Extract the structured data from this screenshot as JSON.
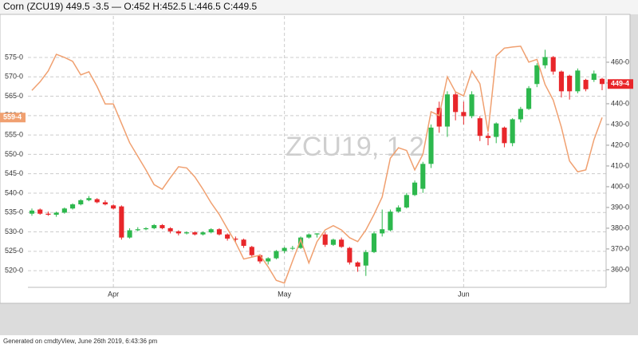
{
  "chart_data": {
    "type": "candlestick",
    "title": "Corn (ZCU19) 449.5 -3.5 — O:452 H:452.5 L:446.5 C:449.5",
    "watermark": "ZCU19, 1 2",
    "footer": "Generated on cmdtyView, June 26th 2019, 6:43:36 pm",
    "categories": [
      null,
      null,
      null,
      null,
      null,
      null,
      null,
      null,
      null,
      null,
      "Apr",
      null,
      null,
      null,
      null,
      null,
      null,
      null,
      null,
      null,
      null,
      null,
      null,
      null,
      null,
      null,
      null,
      null,
      null,
      null,
      null,
      "May",
      null,
      null,
      null,
      null,
      null,
      null,
      null,
      null,
      null,
      null,
      null,
      null,
      null,
      null,
      null,
      null,
      null,
      null,
      null,
      null,
      null,
      "Jun",
      null,
      null,
      null,
      null,
      null,
      null,
      null,
      null,
      null,
      null,
      null,
      null,
      null,
      null,
      null,
      null,
      null
    ],
    "grid": true,
    "ylim": [
      515.7,
      585.7
    ],
    "yticks": [
      {
        "value": 520,
        "label": "520-0"
      },
      {
        "value": 525,
        "label": "525-0"
      },
      {
        "value": 530,
        "label": "530-0"
      },
      {
        "value": 535,
        "label": "535-0"
      },
      {
        "value": 540,
        "label": "540-0"
      },
      {
        "value": 545,
        "label": "545-0"
      },
      {
        "value": 550,
        "label": "550-0"
      },
      {
        "value": 555,
        "label": "555-0"
      },
      {
        "value": 560,
        "label": "560-0"
      },
      {
        "value": 565,
        "label": "565-0"
      },
      {
        "value": 570,
        "label": "570-0"
      },
      {
        "value": 575,
        "label": "575-0"
      }
    ],
    "y2lim": [
      351.5,
      482.3
    ],
    "y2ticks": [
      {
        "value": 360,
        "label": "360-0"
      },
      {
        "value": 370,
        "label": "370-0"
      },
      {
        "value": 380,
        "label": "380-0"
      },
      {
        "value": 390,
        "label": "390-0"
      },
      {
        "value": 400,
        "label": "400-0"
      },
      {
        "value": 410,
        "label": "410-0"
      },
      {
        "value": 420,
        "label": "420-0"
      },
      {
        "value": 430,
        "label": "430-0"
      },
      {
        "value": 440,
        "label": "440-0"
      },
      {
        "value": 450,
        "label": "450-0"
      },
      {
        "value": 460,
        "label": "460-0"
      }
    ],
    "price_tags": [
      {
        "value": 559.5,
        "label": "559-4",
        "axis": "y",
        "color": "#f0a070"
      },
      {
        "value": 449.5,
        "label": "449-4",
        "axis": "y2",
        "color": "#e8262a"
      }
    ],
    "series": [
      {
        "type": "candlestick",
        "axis": "y2",
        "up_color": "#2db84d",
        "down_color": "#e8262a",
        "open": [
          387,
          389,
          387,
          386.5,
          387.5,
          389.5,
          391.5,
          393.5,
          394,
          392.5,
          391,
          390.5,
          375.5,
          379,
          379.5,
          380,
          381.5,
          380,
          378.5,
          377.5,
          378,
          377,
          378,
          379.5,
          377,
          375,
          374.5,
          371,
          367,
          364,
          365.5,
          369,
          370.5,
          370.5,
          375.5,
          377,
          377,
          372,
          374.5,
          370.5,
          363.5,
          362,
          368.5,
          377.5,
          379,
          388,
          390,
          396,
          399,
          411,
          438,
          429,
          444.5,
          436,
          434,
          433,
          424.5,
          424,
          428.5,
          421,
          432.5,
          437.5,
          449.5,
          458.5,
          462.5,
          455.5,
          453.5,
          446,
          451.5,
          451.5,
          452
        ],
        "high": [
          389.5,
          389.5,
          388,
          388,
          390,
          392,
          394,
          395.5,
          394.5,
          393.5,
          391.5,
          391,
          380,
          380.5,
          380.5,
          382,
          382,
          380.5,
          379,
          378.5,
          378.5,
          378.5,
          380,
          380,
          377.5,
          376,
          375,
          371.5,
          367.5,
          366,
          369.5,
          371,
          371.5,
          376,
          377.5,
          377.5,
          378,
          375,
          375.5,
          371,
          364,
          369.5,
          378.5,
          389,
          389,
          391,
          397,
          403,
          412,
          430,
          441,
          446,
          446,
          441,
          446,
          434,
          426,
          431,
          429,
          433,
          438.5,
          448.5,
          459.5,
          466,
          463,
          456,
          454,
          457,
          452,
          456,
          452.5
        ],
        "low": [
          386,
          386.5,
          386,
          385.5,
          387,
          389,
          391,
          393,
          392,
          391,
          389,
          374.5,
          375,
          378.5,
          379,
          379.5,
          379.5,
          377.5,
          376.5,
          377,
          376.5,
          376.5,
          377.5,
          376.5,
          374,
          373.5,
          370.5,
          366,
          363,
          362.5,
          365,
          368,
          369.5,
          370,
          375,
          375.5,
          371,
          371.5,
          370.5,
          362.5,
          359,
          357,
          368,
          376,
          378.5,
          387.5,
          389.5,
          395.5,
          397,
          409,
          426,
          424,
          432,
          430,
          433,
          422,
          420,
          421,
          419,
          419.5,
          431,
          437,
          448,
          457,
          454,
          443,
          442,
          445,
          446,
          450.5,
          446.5
        ],
        "close": [
          388.5,
          387,
          386.5,
          387.5,
          389.5,
          391.5,
          393.5,
          394.5,
          392.5,
          391.5,
          389.5,
          375.5,
          379,
          379.5,
          380,
          381.5,
          380,
          378.5,
          377.5,
          378,
          377,
          378,
          379.5,
          377,
          375,
          374.5,
          371.5,
          367,
          364,
          365.5,
          369,
          370.5,
          370.5,
          375.5,
          377,
          377.5,
          372,
          374.5,
          371,
          363.5,
          361.5,
          368.5,
          377.5,
          379.5,
          388,
          390,
          396,
          402,
          411,
          428.5,
          429,
          444.5,
          436,
          434,
          444.5,
          424.5,
          423.5,
          430.5,
          421,
          432.5,
          437.5,
          447.5,
          458.5,
          462.5,
          455.5,
          446,
          446,
          456,
          447,
          454.5,
          449.5
        ]
      },
      {
        "type": "line",
        "axis": "y",
        "color": "#f0a070",
        "values": [
          566.5,
          568.7,
          571.5,
          575.8,
          575,
          574,
          570.5,
          571.3,
          567.5,
          563,
          563,
          558,
          553,
          549.5,
          546,
          542.2,
          541,
          544,
          546.8,
          546.5,
          544.2,
          541,
          537.5,
          534.5,
          530.8,
          527.3,
          523,
          523.5,
          524,
          521,
          517.5,
          516.8,
          522.5,
          528,
          522,
          527.5,
          530.5,
          531.6,
          530.5,
          528.5,
          527.5,
          530.5,
          534.5,
          539,
          549,
          551.7,
          551,
          546,
          550,
          561,
          560,
          570,
          566.1,
          565.1,
          571.5,
          568.2,
          555.8,
          575.4,
          577.4,
          577.7,
          577.9,
          573.8,
          574.5,
          568,
          564,
          557,
          548.3,
          545.5,
          546,
          553.8,
          559.5
        ]
      }
    ]
  }
}
